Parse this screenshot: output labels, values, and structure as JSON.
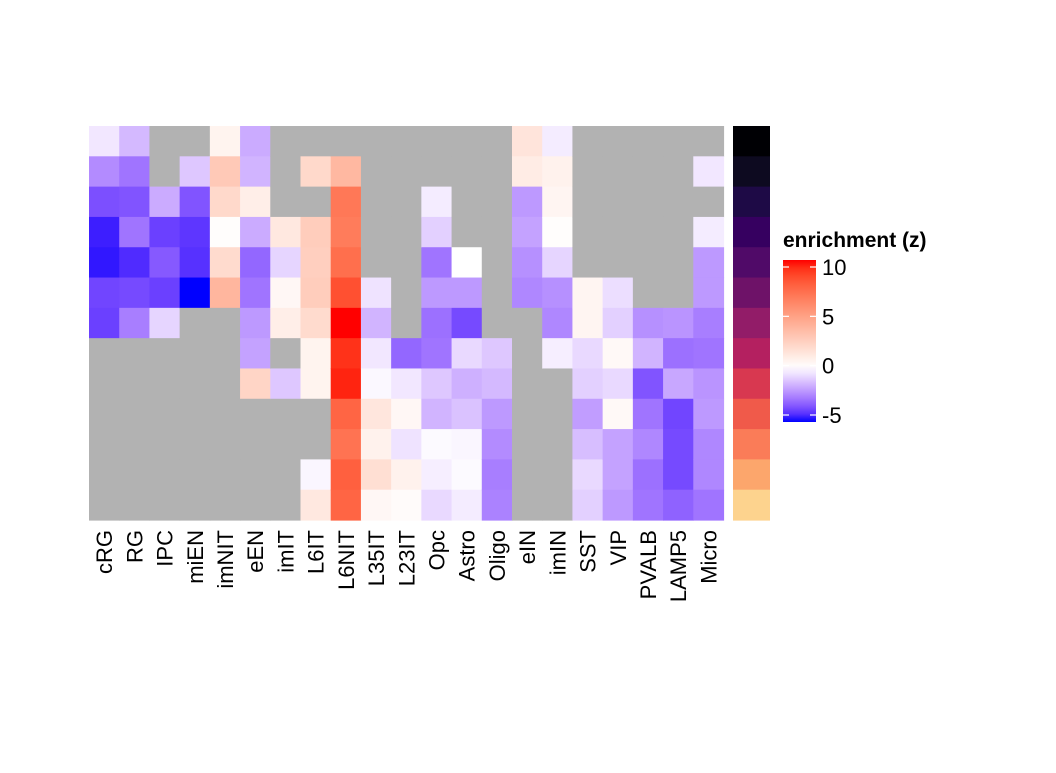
{
  "chart_data": {
    "type": "heatmap",
    "title": "",
    "xlabel": "",
    "ylabel": "",
    "columns": [
      "cRG",
      "RG",
      "IPC",
      "miEN",
      "imNIT",
      "eEN",
      "imIT",
      "L6IT",
      "L6NIT",
      "L35IT",
      "L23IT",
      "Opc",
      "Astro",
      "Oligo",
      "eIN",
      "imIN",
      "SST",
      "VIP",
      "PVALB",
      "LAMP5",
      "Micro"
    ],
    "row_count": 13,
    "values_by_column": [
      [
        -0.5,
        -2.5,
        -3.8,
        -4.7,
        -4.8,
        -4.0,
        -4.1,
        null,
        null,
        null,
        null,
        null,
        null
      ],
      [
        -1.5,
        -3.0,
        -3.7,
        -3.0,
        -4.5,
        -3.9,
        -2.8,
        null,
        null,
        null,
        null,
        null,
        null
      ],
      [
        null,
        null,
        -1.8,
        -4.1,
        -3.6,
        -4.1,
        -0.9,
        null,
        null,
        null,
        null,
        null,
        null
      ],
      [
        null,
        -1.2,
        -3.7,
        -4.3,
        -4.4,
        -5.0,
        null,
        null,
        null,
        null,
        null,
        null,
        null
      ],
      [
        0.6,
        2.8,
        2.0,
        0.1,
        1.9,
        3.8,
        null,
        null,
        null,
        null,
        null,
        null,
        null
      ],
      [
        -1.8,
        -1.6,
        0.9,
        -1.8,
        -3.3,
        -3.0,
        -2.2,
        -2.0,
        2.2,
        null,
        null,
        null,
        null
      ],
      [
        null,
        null,
        null,
        1.2,
        -0.9,
        0.4,
        0.9,
        null,
        -1.2,
        null,
        null,
        null,
        null
      ],
      [
        null,
        2.0,
        null,
        2.6,
        2.5,
        2.6,
        1.9,
        0.6,
        0.6,
        null,
        null,
        -0.2,
        1.2
      ],
      [
        null,
        3.7,
        6.8,
        6.6,
        7.2,
        8.4,
        10.0,
        9.3,
        9.6,
        7.6,
        7.0,
        7.8,
        7.6
      ],
      [
        null,
        null,
        null,
        null,
        null,
        -0.6,
        -1.6,
        -0.5,
        -0.15,
        1.3,
        0.7,
        1.7,
        0.4
      ],
      [
        null,
        null,
        null,
        null,
        null,
        null,
        null,
        -3.3,
        -0.5,
        0.4,
        -0.6,
        0.7,
        0.2
      ],
      [
        null,
        null,
        -0.4,
        -1.0,
        -3.0,
        -2.2,
        -3.1,
        -3.0,
        -1.2,
        -1.6,
        -0.1,
        -0.35,
        -0.8
      ],
      [
        null,
        null,
        null,
        null,
        0.0,
        -2.2,
        -3.9,
        -0.8,
        -1.7,
        -1.3,
        -0.2,
        -0.1,
        -0.4
      ],
      [
        null,
        null,
        null,
        null,
        null,
        null,
        null,
        -1.2,
        -1.5,
        -2.2,
        -2.5,
        -2.8,
        -2.7
      ],
      [
        1.4,
        1.0,
        -2.2,
        -2.0,
        -2.4,
        -2.6,
        null,
        null,
        null,
        null,
        null,
        null,
        null
      ],
      [
        -0.4,
        0.7,
        0.5,
        0.1,
        -0.9,
        -2.4,
        -2.6,
        -0.35,
        null,
        null,
        null,
        null,
        null
      ],
      [
        null,
        null,
        null,
        null,
        null,
        0.5,
        0.5,
        -0.8,
        -1.0,
        -2.1,
        -1.4,
        -0.8,
        -1.0
      ],
      [
        null,
        null,
        null,
        null,
        null,
        -0.7,
        -1.0,
        0.3,
        -0.8,
        0.3,
        -2.0,
        -2.0,
        -2.2
      ],
      [
        null,
        null,
        null,
        null,
        null,
        null,
        -2.4,
        -1.6,
        -3.7,
        -3.0,
        -2.6,
        -3.1,
        -3.0
      ],
      [
        null,
        null,
        null,
        null,
        null,
        null,
        -2.3,
        -3.1,
        -1.9,
        -4.0,
        -3.9,
        -3.9,
        -3.4
      ],
      [
        null,
        -0.5,
        null,
        -0.4,
        -2.2,
        -2.2,
        -2.8,
        -3.0,
        -2.3,
        -2.2,
        -2.6,
        -2.6,
        -3.0
      ]
    ],
    "na_color": "#B2B2B2",
    "color_scale": {
      "breaks": [
        -5,
        0,
        10
      ],
      "colors": [
        "#0000FF",
        "#FFFFFF",
        "#FF0000"
      ]
    },
    "row_annotation_colors": [
      "#000004",
      "#0D0A20",
      "#1E0A46",
      "#360060",
      "#500A68",
      "#6E1268",
      "#921C68",
      "#B42060",
      "#D83850",
      "#F05A4A",
      "#FA7C58",
      "#FCA66C",
      "#FDD38E"
    ],
    "legend": {
      "title": "enrichment (z)",
      "ticks": [
        10,
        5,
        0,
        -5
      ],
      "tick_labels": [
        "10",
        "5",
        "0",
        "-5"
      ],
      "placement": "right"
    }
  }
}
